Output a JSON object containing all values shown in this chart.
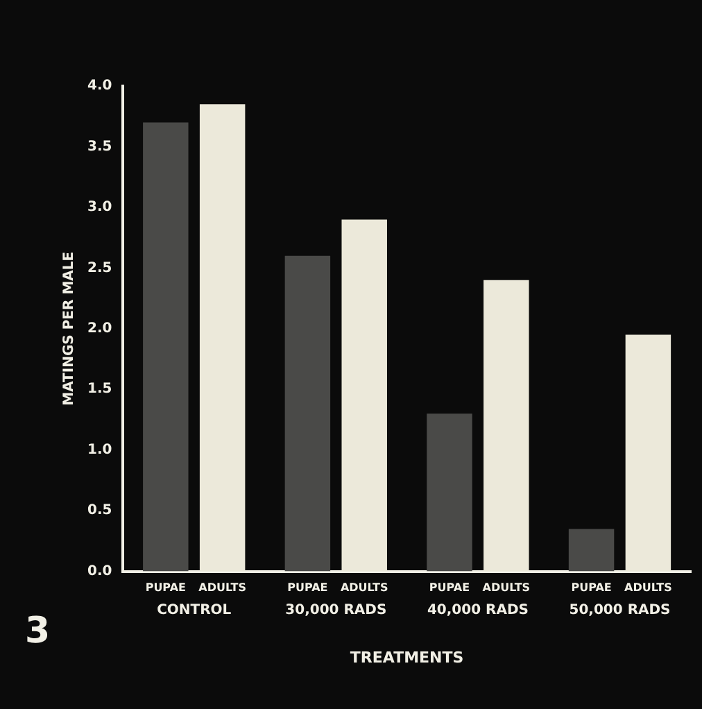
{
  "chart_data": {
    "type": "bar",
    "xlabel": "TREATMENTS",
    "ylabel": "MATINGS PER MALE",
    "categories": [
      "CONTROL",
      "30,000 RADS",
      "40,000 RADS",
      "50,000 RADS"
    ],
    "series": [
      {
        "name": "PUPAE",
        "color": "#4a4a48",
        "values": [
          3.7,
          2.6,
          1.3,
          0.35
        ]
      },
      {
        "name": "ADULTS",
        "color": "#ece9da",
        "values": [
          3.85,
          2.9,
          2.4,
          1.95
        ]
      }
    ],
    "ylim": [
      0,
      4
    ],
    "yticks": [
      {
        "value": 0,
        "label": "0.0"
      },
      {
        "value": 0.5,
        "label": "0.5"
      },
      {
        "value": 1,
        "label": "1.0"
      },
      {
        "value": 1.5,
        "label": "1.5"
      },
      {
        "value": 2,
        "label": "2.0"
      },
      {
        "value": 2.5,
        "label": "2.5"
      },
      {
        "value": 3,
        "label": "3.0"
      },
      {
        "value": 3.5,
        "label": "3.5"
      },
      {
        "value": 4,
        "label": "4.0"
      }
    ],
    "grid": false,
    "legend": false,
    "annotations": [
      "3"
    ]
  }
}
